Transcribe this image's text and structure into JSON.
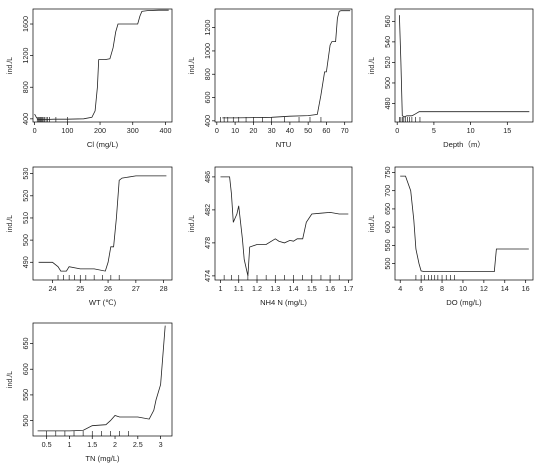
{
  "chart_data": [
    {
      "id": "cl",
      "type": "line",
      "xlabel": "Cl (mg/L)",
      "ylabel": "ind./L",
      "xlim": [
        -5,
        420
      ],
      "ylim": [
        360,
        1790
      ],
      "xticks": [
        0,
        100,
        200,
        300,
        400
      ],
      "yticks": [
        400,
        800,
        1200,
        1600
      ],
      "x": [
        0,
        5,
        10,
        18,
        35,
        60,
        100,
        150,
        175,
        185,
        192,
        196,
        205,
        215,
        230,
        240,
        248,
        255,
        265,
        290,
        315,
        322,
        328,
        345,
        380,
        410
      ],
      "y": [
        460,
        420,
        395,
        392,
        392,
        395,
        396,
        400,
        420,
        500,
        800,
        1150,
        1150,
        1150,
        1160,
        1300,
        1500,
        1600,
        1600,
        1600,
        1600,
        1700,
        1760,
        1770,
        1775,
        1775
      ],
      "rug": [
        8,
        12,
        15,
        18,
        20,
        23,
        26,
        30,
        35,
        40,
        45,
        65,
        100
      ]
    },
    {
      "id": "ntu",
      "type": "line",
      "xlabel": "NTU",
      "ylabel": "ind./L",
      "xlim": [
        -1,
        74
      ],
      "ylim": [
        390,
        1360
      ],
      "xticks": [
        0,
        10,
        20,
        30,
        40,
        50,
        60,
        70
      ],
      "yticks": [
        400,
        600,
        800,
        1000,
        1200
      ],
      "x": [
        3,
        10,
        20,
        30,
        40,
        50,
        55,
        57,
        59,
        60,
        62,
        63,
        64,
        65,
        66,
        67,
        68,
        69,
        71,
        73
      ],
      "y": [
        425,
        425,
        428,
        430,
        440,
        445,
        455,
        620,
        820,
        820,
        1050,
        1080,
        1080,
        1080,
        1280,
        1340,
        1345,
        1345,
        1345,
        1345
      ],
      "rug": [
        2,
        4,
        6,
        9,
        12,
        16,
        20,
        25,
        30,
        37,
        45,
        51,
        57
      ]
    },
    {
      "id": "depth",
      "type": "line",
      "xlabel": "Depth（m）",
      "ylabel": "ind./L",
      "xlim": [
        -0.3,
        18.5
      ],
      "ylim": [
        462,
        572
      ],
      "xticks": [
        0,
        5,
        10,
        15
      ],
      "yticks": [
        480,
        500,
        520,
        540,
        560
      ],
      "x": [
        0.3,
        0.5,
        0.7,
        1.0,
        1.3,
        2.0,
        2.5,
        3.0,
        3.5,
        5,
        10,
        15,
        18
      ],
      "y": [
        566,
        520,
        468,
        467,
        468,
        468,
        470,
        472,
        472,
        472,
        472,
        472,
        472
      ],
      "rug": [
        0.3,
        0.5,
        0.7,
        0.9,
        1.1,
        1.4,
        1.7,
        2.0,
        2.5,
        3.1
      ]
    },
    {
      "id": "wt",
      "type": "line",
      "xlabel": "WT (℃)",
      "ylabel": "ind./L",
      "xlim": [
        23.3,
        28.3
      ],
      "ylim": [
        482,
        533
      ],
      "xticks": [
        24,
        25,
        26,
        27,
        28
      ],
      "yticks": [
        490,
        500,
        510,
        520,
        530
      ],
      "x": [
        23.5,
        24.0,
        24.2,
        24.3,
        24.5,
        24.6,
        25.0,
        25.5,
        25.9,
        26.0,
        26.1,
        26.2,
        26.3,
        26.4,
        26.5,
        27.0,
        27.5,
        28.1
      ],
      "y": [
        490,
        490,
        488,
        486,
        486,
        488,
        487,
        487,
        486,
        490,
        497,
        497,
        510,
        527,
        528,
        529,
        529,
        529
      ],
      "rug": [
        24.2,
        24.4,
        24.6,
        24.8,
        25.0,
        25.2,
        25.5,
        25.8,
        26.1,
        26.4
      ]
    },
    {
      "id": "nh4n",
      "type": "line",
      "xlabel": "NH4 N (mg/L)",
      "ylabel": "ind./L",
      "xlim": [
        0.97,
        1.72
      ],
      "ylim": [
        473.5,
        487.2
      ],
      "xticks": [
        1.0,
        1.1,
        1.2,
        1.3,
        1.4,
        1.5,
        1.6,
        1.7
      ],
      "yticks": [
        474,
        478,
        482,
        486
      ],
      "x": [
        1.0,
        1.05,
        1.06,
        1.07,
        1.08,
        1.09,
        1.1,
        1.12,
        1.13,
        1.15,
        1.16,
        1.2,
        1.25,
        1.3,
        1.32,
        1.35,
        1.38,
        1.4,
        1.42,
        1.45,
        1.47,
        1.5,
        1.55,
        1.6,
        1.65,
        1.7
      ],
      "y": [
        486,
        486,
        484,
        480.5,
        481,
        481.5,
        482.5,
        478.5,
        476,
        474,
        477.5,
        477.8,
        477.8,
        478.5,
        478.2,
        478,
        478.3,
        478.2,
        478.5,
        478.5,
        480.5,
        481.5,
        481.6,
        481.7,
        481.5,
        481.5
      ],
      "rug": [
        1.02,
        1.06,
        1.1,
        1.15,
        1.2,
        1.25,
        1.3,
        1.35,
        1.4,
        1.45,
        1.5,
        1.55,
        1.6,
        1.65
      ]
    },
    {
      "id": "do",
      "type": "line",
      "xlabel": "DO (mg/L)",
      "ylabel": "ind./L",
      "xlim": [
        3.5,
        16.7
      ],
      "ylim": [
        455,
        765
      ],
      "xticks": [
        4,
        6,
        8,
        10,
        12,
        14,
        16
      ],
      "yticks": [
        500,
        550,
        600,
        650,
        700,
        750
      ],
      "x": [
        4.0,
        4.5,
        5.0,
        5.3,
        5.5,
        5.8,
        6.0,
        6.3,
        7,
        8,
        9,
        10,
        11,
        12,
        13.0,
        13.2,
        14,
        15,
        16.3
      ],
      "y": [
        740,
        740,
        700,
        620,
        540,
        500,
        480,
        478,
        478,
        478,
        478,
        478,
        478,
        478,
        478,
        540,
        540,
        540,
        540
      ],
      "rug": [
        5.5,
        6.0,
        6.3,
        6.7,
        7.0,
        7.3,
        7.6,
        8.0,
        8.4,
        8.8,
        9.2
      ]
    },
    {
      "id": "tn",
      "type": "line",
      "xlabel": "TN (mg/L)",
      "ylabel": "ind./L",
      "xlim": [
        0.2,
        3.25
      ],
      "ylim": [
        470,
        690
      ],
      "xticks": [
        0.5,
        1.0,
        1.5,
        2.0,
        2.5,
        3.0
      ],
      "yticks": [
        500,
        550,
        600,
        650
      ],
      "x": [
        0.3,
        0.5,
        1.0,
        1.3,
        1.5,
        1.8,
        1.9,
        2.0,
        2.1,
        2.5,
        2.75,
        2.85,
        2.9,
        3.0,
        3.1
      ],
      "y": [
        480,
        480,
        480,
        481,
        490,
        492,
        500,
        510,
        507,
        507,
        503,
        520,
        540,
        570,
        685
      ],
      "rug": [
        0.5,
        0.7,
        0.9,
        1.1,
        1.3,
        1.5,
        1.7,
        1.9,
        2.1,
        2.3
      ]
    }
  ]
}
